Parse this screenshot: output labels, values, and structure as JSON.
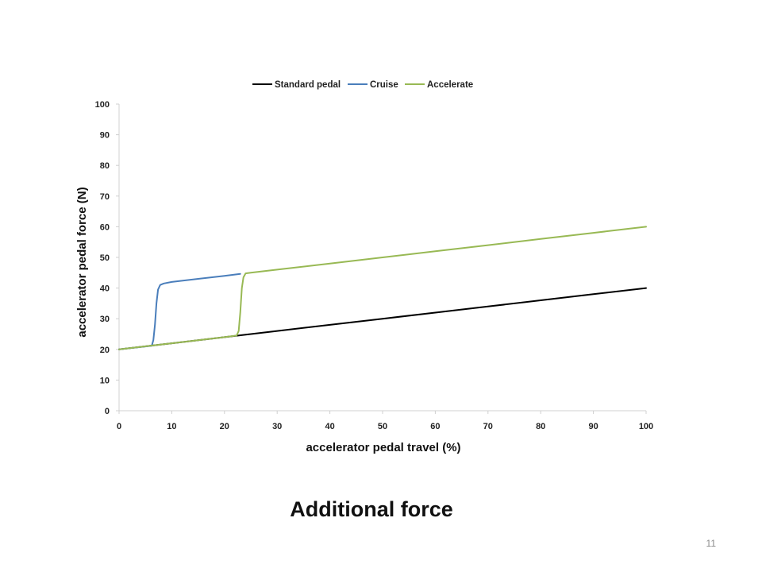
{
  "slide": {
    "caption": "Additional force",
    "page_number": "11"
  },
  "chart_data": {
    "type": "line",
    "title": "",
    "xlabel": "accelerator pedal travel (%)",
    "ylabel": "accelerator pedal force (N)",
    "xlim": [
      0,
      100
    ],
    "ylim": [
      0,
      100
    ],
    "xticks": [
      0,
      10,
      20,
      30,
      40,
      50,
      60,
      70,
      80,
      90,
      100
    ],
    "yticks": [
      0,
      10,
      20,
      30,
      40,
      50,
      60,
      70,
      80,
      90,
      100
    ],
    "grid": false,
    "legend_position": "top",
    "series": [
      {
        "name": "Standard pedal",
        "color": "#000000",
        "x": [
          0,
          10,
          20,
          30,
          40,
          50,
          60,
          70,
          80,
          90,
          100
        ],
        "y": [
          20,
          22,
          24,
          26,
          28,
          30,
          32,
          34,
          36,
          38,
          40
        ]
      },
      {
        "name": "Cruise",
        "color": "#4a7ebb",
        "x": [
          0,
          6.2,
          6.5,
          6.8,
          7.1,
          7.4,
          7.8,
          8.5,
          10,
          20,
          23
        ],
        "y": [
          20,
          21.2,
          23,
          28,
          35,
          39.5,
          41,
          41.5,
          42,
          44,
          44.6
        ]
      },
      {
        "name": "Accelerate",
        "color": "#98b954",
        "x": [
          0,
          10,
          20,
          22.3,
          22.7,
          23,
          23.3,
          23.6,
          24,
          25,
          30,
          40,
          50,
          60,
          70,
          80,
          90,
          100
        ],
        "y": [
          20,
          22,
          24,
          24.5,
          26,
          32,
          40,
          43.5,
          44.8,
          45,
          46,
          48,
          50,
          52,
          54,
          56,
          58,
          60
        ]
      }
    ]
  }
}
